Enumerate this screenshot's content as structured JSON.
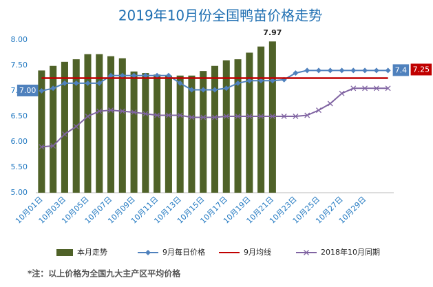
{
  "chart_data": {
    "type": "bar",
    "title": "2019年10月份全国鸭苗价格走势",
    "note": "*注：以上价格为全国九大主产区平均价格",
    "categories": [
      "10月01日",
      null,
      "10月03日",
      null,
      "10月05日",
      null,
      "10月07日",
      null,
      "10月09日",
      null,
      "10月11日",
      null,
      "10月13日",
      null,
      "10月15日",
      null,
      "10月17日",
      null,
      "10月19日",
      null,
      "10月21日",
      null,
      "10月23日",
      null,
      "10月25日",
      null,
      "10月27日",
      null,
      "10月29日",
      null,
      null
    ],
    "ylim": [
      5,
      8
    ],
    "yticks": [
      {
        "value": 5,
        "label": "5.00"
      },
      {
        "value": 5.5,
        "label": "5.50"
      },
      {
        "value": 6,
        "label": "6.00"
      },
      {
        "value": 6.5,
        "label": "6.50"
      },
      {
        "value": 7,
        "label": "7.00"
      },
      {
        "value": 7.5,
        "label": "7.50"
      },
      {
        "value": 8,
        "label": "8.00"
      }
    ],
    "grid": false,
    "legend": "bottom",
    "series": [
      {
        "name": "本月走势",
        "type": "bar",
        "color": "#4f6228",
        "values": [
          7.4,
          7.49,
          7.57,
          7.62,
          7.72,
          7.72,
          7.68,
          7.64,
          7.38,
          7.35,
          7.32,
          7.3,
          7.3,
          7.3,
          7.39,
          7.49,
          7.6,
          7.62,
          7.75,
          7.87,
          7.97,
          null,
          null,
          null,
          null,
          null,
          null,
          null,
          null,
          null,
          null
        ],
        "value_labels": [
          null,
          null,
          null,
          null,
          null,
          null,
          null,
          null,
          null,
          null,
          null,
          null,
          null,
          null,
          null,
          null,
          null,
          null,
          null,
          null,
          "7.97",
          null,
          null,
          null,
          null,
          null,
          null,
          null,
          null,
          null,
          null
        ]
      },
      {
        "name": "9月每日价格",
        "type": "line",
        "marker": "diamond",
        "color": "#4f81bd",
        "values": [
          7.0,
          7.05,
          7.15,
          7.15,
          7.15,
          7.15,
          7.3,
          7.3,
          7.3,
          7.3,
          7.3,
          7.3,
          7.15,
          7.02,
          7.02,
          7.02,
          7.05,
          7.15,
          7.2,
          7.2,
          7.2,
          7.22,
          7.35,
          7.4,
          7.4,
          7.4,
          7.4,
          7.4,
          7.4,
          7.4,
          7.4
        ],
        "value_labels": [
          "7.00",
          null,
          null,
          null,
          null,
          null,
          null,
          null,
          null,
          null,
          null,
          null,
          null,
          null,
          null,
          null,
          null,
          null,
          null,
          null,
          null,
          null,
          null,
          null,
          null,
          null,
          null,
          null,
          null,
          null,
          "7.4"
        ]
      },
      {
        "name": "9月均线",
        "type": "line",
        "marker": "none",
        "color": "#c00000",
        "values": [
          7.25,
          7.25,
          7.25,
          7.25,
          7.25,
          7.25,
          7.25,
          7.25,
          7.25,
          7.25,
          7.25,
          7.25,
          7.25,
          7.25,
          7.25,
          7.25,
          7.25,
          7.25,
          7.25,
          7.25,
          7.25,
          7.25,
          7.25,
          7.25,
          7.25,
          7.25,
          7.25,
          7.25,
          7.25,
          7.25,
          7.25
        ],
        "value_labels": [
          null,
          null,
          null,
          null,
          null,
          null,
          null,
          null,
          null,
          null,
          null,
          null,
          null,
          null,
          null,
          null,
          null,
          null,
          null,
          null,
          null,
          null,
          null,
          null,
          null,
          null,
          null,
          null,
          null,
          null,
          "7.25"
        ]
      },
      {
        "name": "2018年10月同期",
        "type": "line",
        "marker": "x",
        "color": "#8064a2",
        "values": [
          5.9,
          5.92,
          6.15,
          6.3,
          6.5,
          6.6,
          6.62,
          6.6,
          6.58,
          6.55,
          6.52,
          6.52,
          6.52,
          6.48,
          6.48,
          6.48,
          6.5,
          6.5,
          6.5,
          6.5,
          6.5,
          6.5,
          6.5,
          6.52,
          6.62,
          6.75,
          6.95,
          7.05,
          7.05,
          7.05,
          7.05
        ]
      }
    ]
  }
}
